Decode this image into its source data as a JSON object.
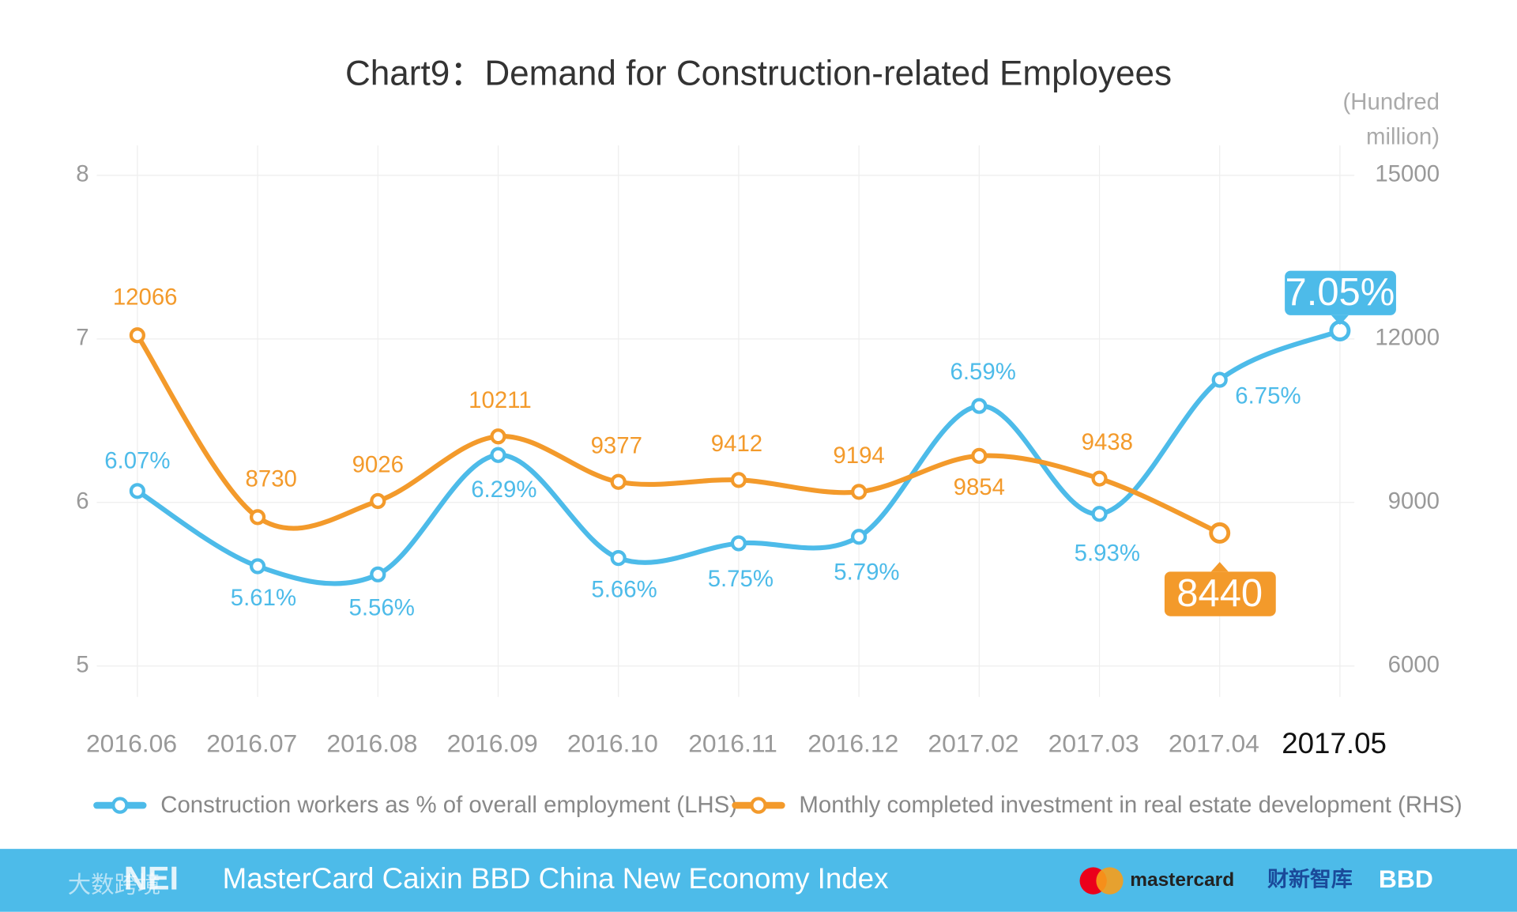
{
  "chart_data": {
    "type": "line",
    "title": "Chart9：Demand for Construction-related Employees",
    "categories": [
      "2016.06",
      "2016.07",
      "2016.08",
      "2016.09",
      "2016.10",
      "2016.11",
      "2016.12",
      "2017.02",
      "2017.03",
      "2017.04",
      "2017.05"
    ],
    "series": [
      {
        "name": "Construction workers as % of overall employment (LHS)",
        "color": "#4dbbe9",
        "axis": "y",
        "values": [
          6.07,
          5.61,
          5.56,
          6.29,
          5.66,
          5.75,
          5.79,
          6.59,
          5.93,
          6.75,
          7.05
        ],
        "value_labels": [
          "6.07%",
          "5.61%",
          "5.56%",
          "6.29%",
          "5.66%",
          "5.75%",
          "5.79%",
          "6.59%",
          "5.93%",
          "6.75%",
          "7.05%"
        ]
      },
      {
        "name": "Monthly completed investment in real estate development (RHS)",
        "color": "#f39a2b",
        "axis": "y2",
        "values": [
          12066,
          8730,
          9026,
          10211,
          9377,
          9412,
          9194,
          9854,
          9438,
          8440,
          null
        ]
      }
    ],
    "ylim": [
      5,
      8
    ],
    "yticks": [
      5,
      6,
      7,
      8
    ],
    "y2lim": [
      6000,
      15000
    ],
    "y2ticks": [
      6000,
      9000,
      12000,
      15000
    ],
    "y2label": "(Hundred million)",
    "grid": true
  },
  "footer": {
    "title": "MasterCard Caixin BBD China New Economy Index",
    "logo": "NEI",
    "watermark": "大数跨境",
    "partners": [
      "mastercard",
      "财新智库",
      "BBD"
    ]
  }
}
